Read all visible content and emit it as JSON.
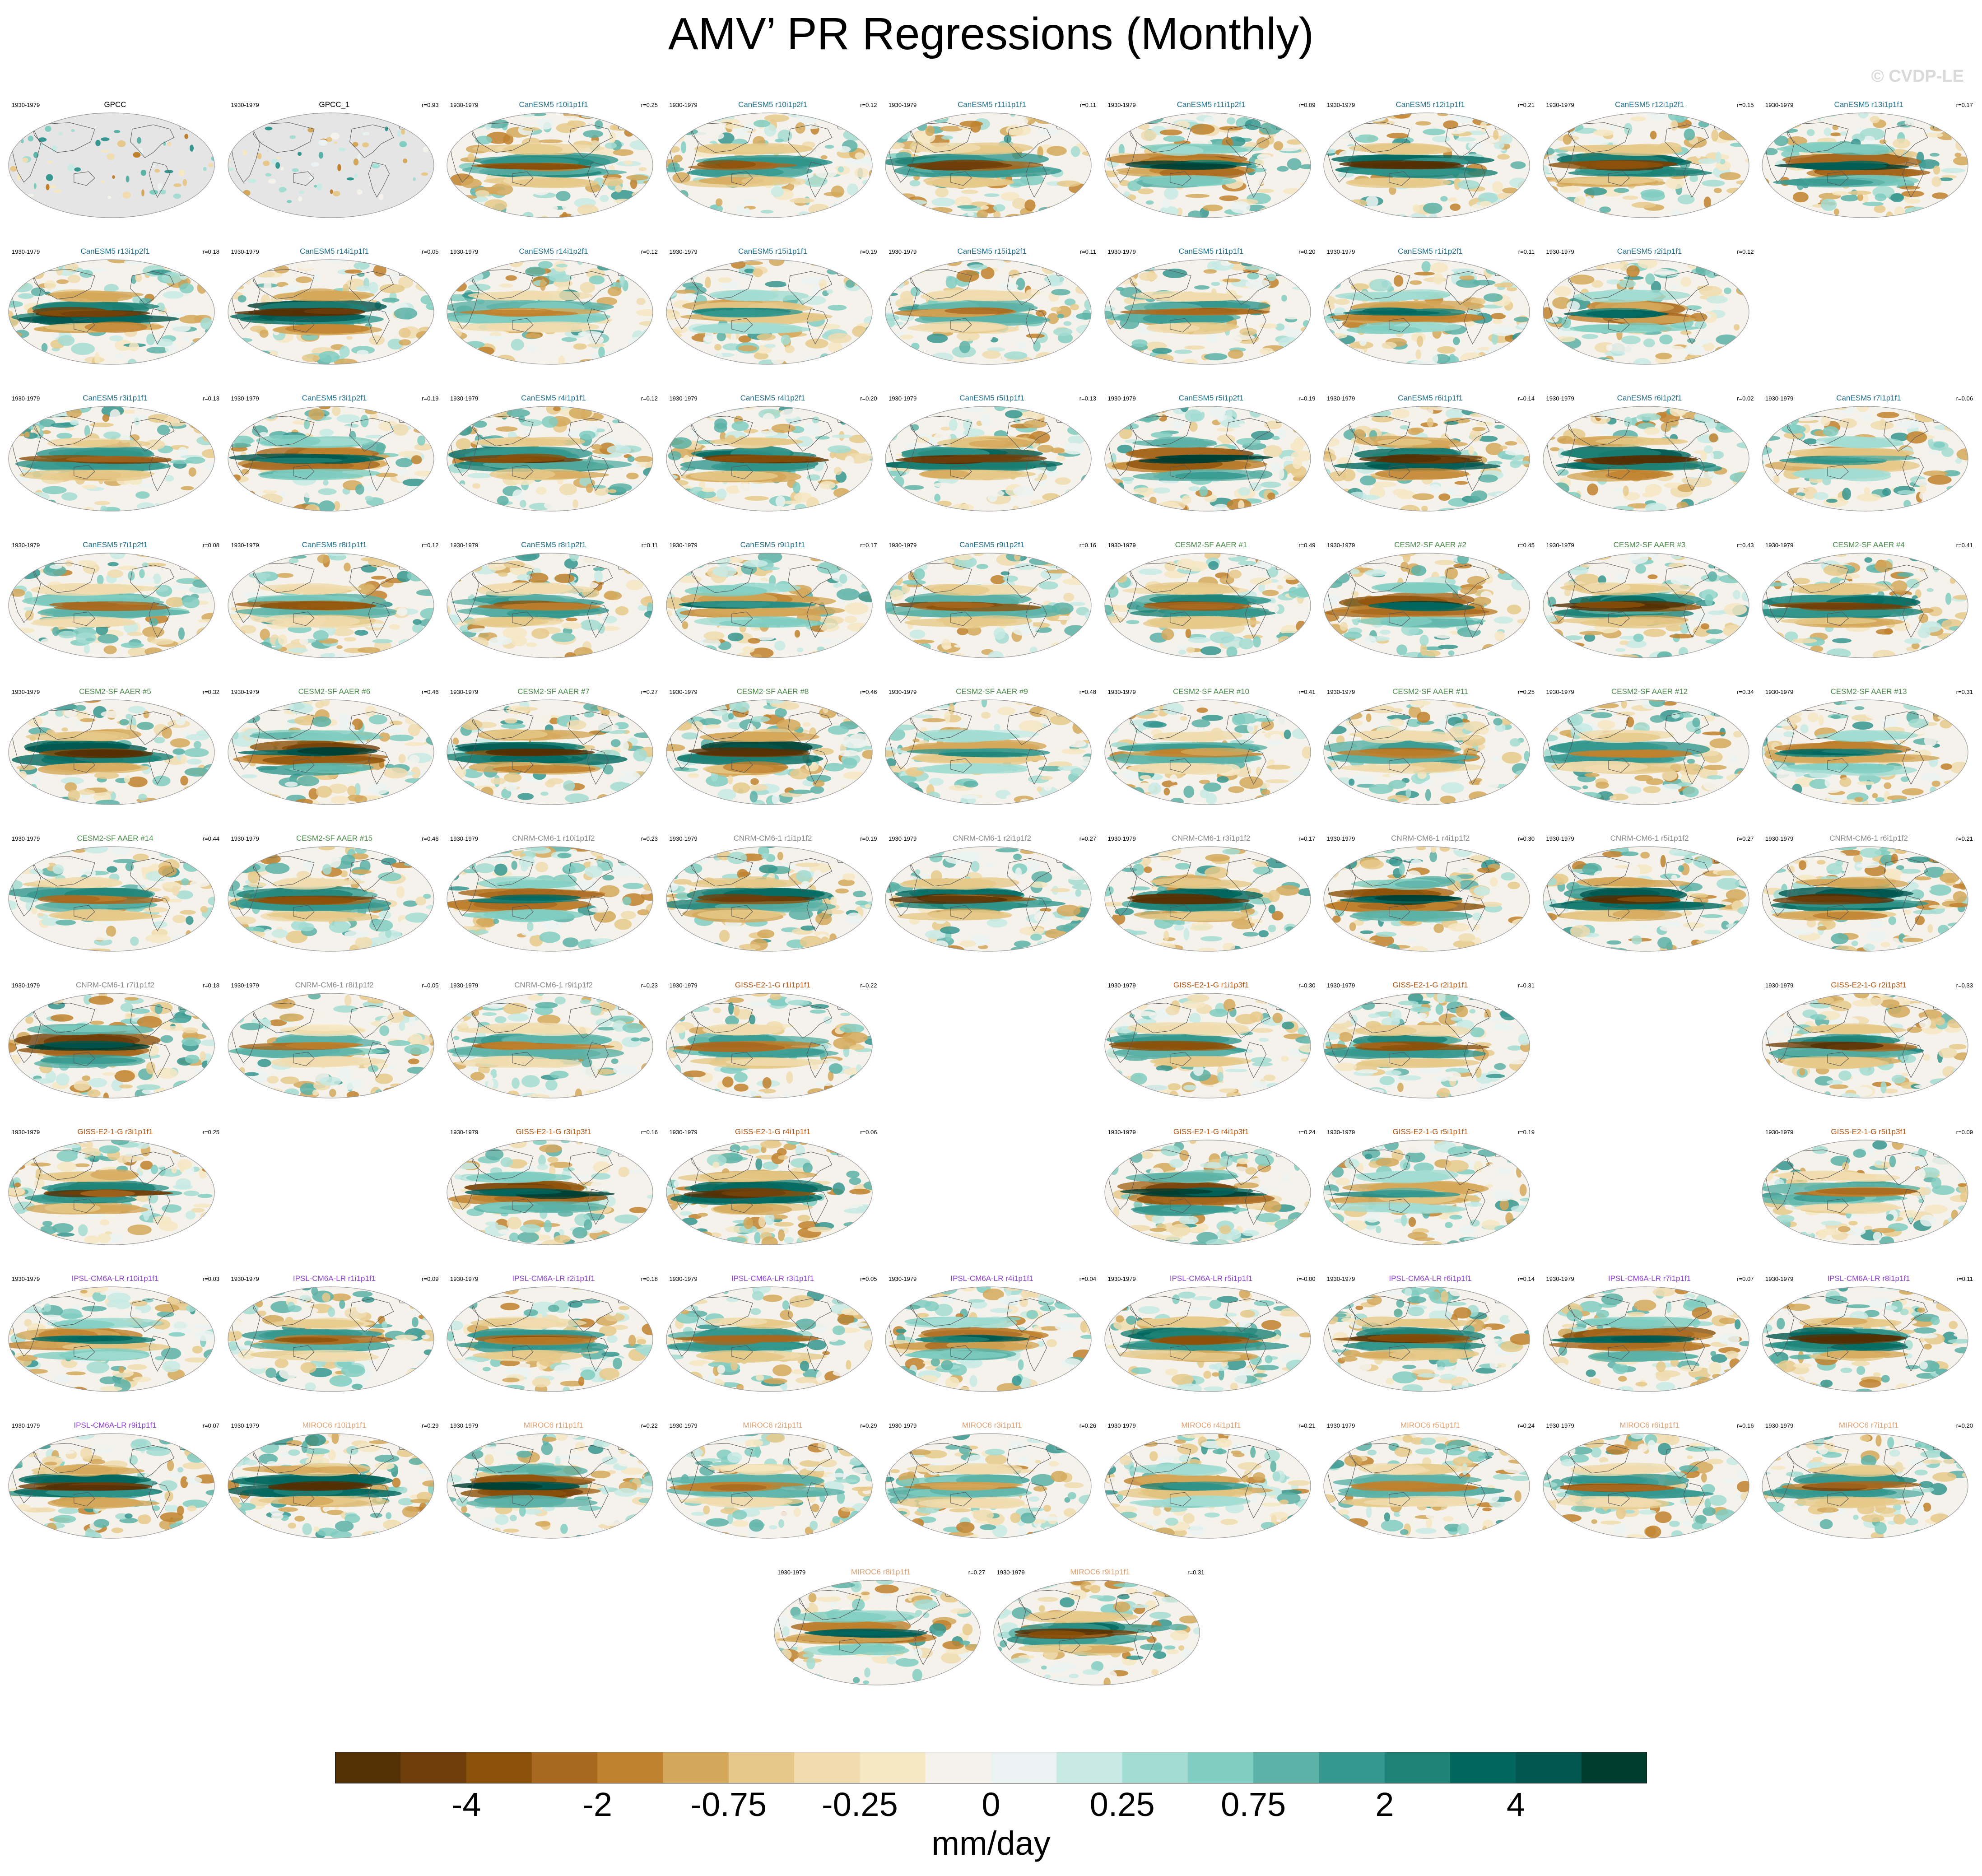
{
  "title": "AMV’ PR Regressions (Monthly)",
  "watermark": "© CVDP-LE",
  "group_colors": {
    "obs": "#000000",
    "CanESM5": "#1f6f8b",
    "CESM2-SF AAER": "#4a8a4a",
    "CNRM-CM6-1": "#888888",
    "GISS-E2-1-G": "#b5540f",
    "IPSL-CM6A-LR": "#8a3fd1",
    "MIROC6": "#e0a070"
  },
  "panels": [
    {
      "period": "1930-1979",
      "title": "GPCC",
      "r": "",
      "group": "obs",
      "obs": true
    },
    {
      "period": "1930-1979",
      "title": "GPCC_1",
      "r": "r=0.93",
      "group": "obs",
      "obs": true
    },
    {
      "period": "1930-1979",
      "title": "CanESM5 r10i1p1f1",
      "r": "r=0.25",
      "group": "CanESM5"
    },
    {
      "period": "1930-1979",
      "title": "CanESM5 r10i1p2f1",
      "r": "r=0.12",
      "group": "CanESM5"
    },
    {
      "period": "1930-1979",
      "title": "CanESM5 r11i1p1f1",
      "r": "r=0.11",
      "group": "CanESM5"
    },
    {
      "period": "1930-1979",
      "title": "CanESM5 r11i1p2f1",
      "r": "r=0.09",
      "group": "CanESM5"
    },
    {
      "period": "1930-1979",
      "title": "CanESM5 r12i1p1f1",
      "r": "r=0.21",
      "group": "CanESM5"
    },
    {
      "period": "1930-1979",
      "title": "CanESM5 r12i1p2f1",
      "r": "r=0.15",
      "group": "CanESM5"
    },
    {
      "period": "1930-1979",
      "title": "CanESM5 r13i1p1f1",
      "r": "r=0.17",
      "group": "CanESM5"
    },
    {
      "period": "1930-1979",
      "title": "CanESM5 r13i1p2f1",
      "r": "r=0.18",
      "group": "CanESM5"
    },
    {
      "period": "1930-1979",
      "title": "CanESM5 r14i1p1f1",
      "r": "r=0.05",
      "group": "CanESM5"
    },
    {
      "period": "1930-1979",
      "title": "CanESM5 r14i1p2f1",
      "r": "r=0.12",
      "group": "CanESM5"
    },
    {
      "period": "1930-1979",
      "title": "CanESM5 r15i1p1f1",
      "r": "r=0.19",
      "group": "CanESM5"
    },
    {
      "period": "1930-1979",
      "title": "CanESM5 r15i1p2f1",
      "r": "r=0.11",
      "group": "CanESM5"
    },
    {
      "period": "1930-1979",
      "title": "CanESM5 r1i1p1f1",
      "r": "r=0.20",
      "group": "CanESM5"
    },
    {
      "period": "1930-1979",
      "title": "CanESM5 r1i1p2f1",
      "r": "r=0.11",
      "group": "CanESM5"
    },
    {
      "period": "1930-1979",
      "title": "CanESM5 r2i1p1f1",
      "r": "r=0.12",
      "group": "CanESM5"
    },
    null,
    {
      "period": "1930-1979",
      "title": "CanESM5 r3i1p1f1",
      "r": "r=0.13",
      "group": "CanESM5"
    },
    {
      "period": "1930-1979",
      "title": "CanESM5 r3i1p2f1",
      "r": "r=0.19",
      "group": "CanESM5"
    },
    {
      "period": "1930-1979",
      "title": "CanESM5 r4i1p1f1",
      "r": "r=0.12",
      "group": "CanESM5"
    },
    {
      "period": "1930-1979",
      "title": "CanESM5 r4i1p2f1",
      "r": "r=0.20",
      "group": "CanESM5"
    },
    {
      "period": "1930-1979",
      "title": "CanESM5 r5i1p1f1",
      "r": "r=0.13",
      "group": "CanESM5"
    },
    {
      "period": "1930-1979",
      "title": "CanESM5 r5i1p2f1",
      "r": "r=0.19",
      "group": "CanESM5"
    },
    {
      "period": "1930-1979",
      "title": "CanESM5 r6i1p1f1",
      "r": "r=0.14",
      "group": "CanESM5"
    },
    {
      "period": "1930-1979",
      "title": "CanESM5 r6i1p2f1",
      "r": "r=0.02",
      "group": "CanESM5"
    },
    {
      "period": "1930-1979",
      "title": "CanESM5 r7i1p1f1",
      "r": "r=0.06",
      "group": "CanESM5"
    },
    {
      "period": "1930-1979",
      "title": "CanESM5 r7i1p2f1",
      "r": "r=0.08",
      "group": "CanESM5"
    },
    {
      "period": "1930-1979",
      "title": "CanESM5 r8i1p1f1",
      "r": "r=0.12",
      "group": "CanESM5"
    },
    {
      "period": "1930-1979",
      "title": "CanESM5 r8i1p2f1",
      "r": "r=0.11",
      "group": "CanESM5"
    },
    {
      "period": "1930-1979",
      "title": "CanESM5 r9i1p1f1",
      "r": "r=0.17",
      "group": "CanESM5"
    },
    {
      "period": "1930-1979",
      "title": "CanESM5 r9i1p2f1",
      "r": "r=0.16",
      "group": "CanESM5"
    },
    {
      "period": "1930-1979",
      "title": "CESM2-SF AAER #1",
      "r": "r=0.49",
      "group": "CESM2-SF AAER"
    },
    {
      "period": "1930-1979",
      "title": "CESM2-SF AAER #2",
      "r": "r=0.45",
      "group": "CESM2-SF AAER"
    },
    {
      "period": "1930-1979",
      "title": "CESM2-SF AAER #3",
      "r": "r=0.43",
      "group": "CESM2-SF AAER"
    },
    {
      "period": "1930-1979",
      "title": "CESM2-SF AAER #4",
      "r": "r=0.41",
      "group": "CESM2-SF AAER"
    },
    {
      "period": "1930-1979",
      "title": "CESM2-SF AAER #5",
      "r": "r=0.32",
      "group": "CESM2-SF AAER"
    },
    {
      "period": "1930-1979",
      "title": "CESM2-SF AAER #6",
      "r": "r=0.46",
      "group": "CESM2-SF AAER"
    },
    {
      "period": "1930-1979",
      "title": "CESM2-SF AAER #7",
      "r": "r=0.27",
      "group": "CESM2-SF AAER"
    },
    {
      "period": "1930-1979",
      "title": "CESM2-SF AAER #8",
      "r": "r=0.46",
      "group": "CESM2-SF AAER"
    },
    {
      "period": "1930-1979",
      "title": "CESM2-SF AAER #9",
      "r": "r=0.48",
      "group": "CESM2-SF AAER"
    },
    {
      "period": "1930-1979",
      "title": "CESM2-SF AAER #10",
      "r": "r=0.41",
      "group": "CESM2-SF AAER"
    },
    {
      "period": "1930-1979",
      "title": "CESM2-SF AAER #11",
      "r": "r=0.25",
      "group": "CESM2-SF AAER"
    },
    {
      "period": "1930-1979",
      "title": "CESM2-SF AAER #12",
      "r": "r=0.34",
      "group": "CESM2-SF AAER"
    },
    {
      "period": "1930-1979",
      "title": "CESM2-SF AAER #13",
      "r": "r=0.31",
      "group": "CESM2-SF AAER"
    },
    {
      "period": "1930-1979",
      "title": "CESM2-SF AAER #14",
      "r": "r=0.44",
      "group": "CESM2-SF AAER"
    },
    {
      "period": "1930-1979",
      "title": "CESM2-SF AAER #15",
      "r": "r=0.46",
      "group": "CESM2-SF AAER"
    },
    {
      "period": "1930-1979",
      "title": "CNRM-CM6-1 r10i1p1f2",
      "r": "r=0.23",
      "group": "CNRM-CM6-1"
    },
    {
      "period": "1930-1979",
      "title": "CNRM-CM6-1 r1i1p1f2",
      "r": "r=0.19",
      "group": "CNRM-CM6-1"
    },
    {
      "period": "1930-1979",
      "title": "CNRM-CM6-1 r2i1p1f2",
      "r": "r=0.27",
      "group": "CNRM-CM6-1"
    },
    {
      "period": "1930-1979",
      "title": "CNRM-CM6-1 r3i1p1f2",
      "r": "r=0.17",
      "group": "CNRM-CM6-1"
    },
    {
      "period": "1930-1979",
      "title": "CNRM-CM6-1 r4i1p1f2",
      "r": "r=0.30",
      "group": "CNRM-CM6-1"
    },
    {
      "period": "1930-1979",
      "title": "CNRM-CM6-1 r5i1p1f2",
      "r": "r=0.27",
      "group": "CNRM-CM6-1"
    },
    {
      "period": "1930-1979",
      "title": "CNRM-CM6-1 r6i1p1f2",
      "r": "r=0.21",
      "group": "CNRM-CM6-1"
    },
    {
      "period": "1930-1979",
      "title": "CNRM-CM6-1 r7i1p1f2",
      "r": "r=0.18",
      "group": "CNRM-CM6-1"
    },
    {
      "period": "1930-1979",
      "title": "CNRM-CM6-1 r8i1p1f2",
      "r": "r=0.05",
      "group": "CNRM-CM6-1"
    },
    {
      "period": "1930-1979",
      "title": "CNRM-CM6-1 r9i1p1f2",
      "r": "r=0.23",
      "group": "CNRM-CM6-1"
    },
    {
      "period": "1930-1979",
      "title": "GISS-E2-1-G r1i1p1f1",
      "r": "r=0.22",
      "group": "GISS-E2-1-G"
    },
    null,
    {
      "period": "1930-1979",
      "title": "GISS-E2-1-G r1i1p3f1",
      "r": "r=0.30",
      "group": "GISS-E2-1-G"
    },
    {
      "period": "1930-1979",
      "title": "GISS-E2-1-G r2i1p1f1",
      "r": "r=0.31",
      "group": "GISS-E2-1-G"
    },
    null,
    {
      "period": "1930-1979",
      "title": "GISS-E2-1-G r2i1p3f1",
      "r": "r=0.33",
      "group": "GISS-E2-1-G"
    },
    {
      "period": "1930-1979",
      "title": "GISS-E2-1-G r3i1p1f1",
      "r": "r=0.25",
      "group": "GISS-E2-1-G"
    },
    null,
    {
      "period": "1930-1979",
      "title": "GISS-E2-1-G r3i1p3f1",
      "r": "r=0.16",
      "group": "GISS-E2-1-G"
    },
    {
      "period": "1930-1979",
      "title": "GISS-E2-1-G r4i1p1f1",
      "r": "r=0.06",
      "group": "GISS-E2-1-G"
    },
    null,
    {
      "period": "1930-1979",
      "title": "GISS-E2-1-G r4i1p3f1",
      "r": "r=0.24",
      "group": "GISS-E2-1-G"
    },
    {
      "period": "1930-1979",
      "title": "GISS-E2-1-G r5i1p1f1",
      "r": "r=0.19",
      "group": "GISS-E2-1-G"
    },
    null,
    {
      "period": "1930-1979",
      "title": "GISS-E2-1-G r5i1p3f1",
      "r": "r=0.09",
      "group": "GISS-E2-1-G"
    },
    {
      "period": "1930-1979",
      "title": "IPSL-CM6A-LR r10i1p1f1",
      "r": "r=0.03",
      "group": "IPSL-CM6A-LR"
    },
    {
      "period": "1930-1979",
      "title": "IPSL-CM6A-LR r1i1p1f1",
      "r": "r=0.09",
      "group": "IPSL-CM6A-LR"
    },
    {
      "period": "1930-1979",
      "title": "IPSL-CM6A-LR r2i1p1f1",
      "r": "r=0.18",
      "group": "IPSL-CM6A-LR"
    },
    {
      "period": "1930-1979",
      "title": "IPSL-CM6A-LR r3i1p1f1",
      "r": "r=0.05",
      "group": "IPSL-CM6A-LR"
    },
    {
      "period": "1930-1979",
      "title": "IPSL-CM6A-LR r4i1p1f1",
      "r": "r=0.04",
      "group": "IPSL-CM6A-LR"
    },
    {
      "period": "1930-1979",
      "title": "IPSL-CM6A-LR r5i1p1f1",
      "r": "r=-0.00",
      "group": "IPSL-CM6A-LR"
    },
    {
      "period": "1930-1979",
      "title": "IPSL-CM6A-LR r6i1p1f1",
      "r": "r=0.14",
      "group": "IPSL-CM6A-LR"
    },
    {
      "period": "1930-1979",
      "title": "IPSL-CM6A-LR r7i1p1f1",
      "r": "r=0.07",
      "group": "IPSL-CM6A-LR"
    },
    {
      "period": "1930-1979",
      "title": "IPSL-CM6A-LR r8i1p1f1",
      "r": "r=0.11",
      "group": "IPSL-CM6A-LR"
    },
    {
      "period": "1930-1979",
      "title": "IPSL-CM6A-LR r9i1p1f1",
      "r": "r=0.07",
      "group": "IPSL-CM6A-LR"
    },
    {
      "period": "1930-1979",
      "title": "MIROC6 r10i1p1f1",
      "r": "r=0.29",
      "group": "MIROC6"
    },
    {
      "period": "1930-1979",
      "title": "MIROC6 r1i1p1f1",
      "r": "r=0.22",
      "group": "MIROC6"
    },
    {
      "period": "1930-1979",
      "title": "MIROC6 r2i1p1f1",
      "r": "r=0.29",
      "group": "MIROC6"
    },
    {
      "period": "1930-1979",
      "title": "MIROC6 r3i1p1f1",
      "r": "r=0.26",
      "group": "MIROC6"
    },
    {
      "period": "1930-1979",
      "title": "MIROC6 r4i1p1f1",
      "r": "r=0.21",
      "group": "MIROC6"
    },
    {
      "period": "1930-1979",
      "title": "MIROC6 r5i1p1f1",
      "r": "r=0.24",
      "group": "MIROC6"
    },
    {
      "period": "1930-1979",
      "title": "MIROC6 r6i1p1f1",
      "r": "r=0.16",
      "group": "MIROC6"
    },
    {
      "period": "1930-1979",
      "title": "MIROC6 r7i1p1f1",
      "r": "r=0.20",
      "group": "MIROC6"
    },
    {
      "period": "1930-1979",
      "title": "MIROC6 r8i1p1f1",
      "r": "r=0.27",
      "group": "MIROC6"
    },
    {
      "period": "1930-1979",
      "title": "MIROC6 r9i1p1f1",
      "r": "r=0.31",
      "group": "MIROC6"
    }
  ],
  "colorbar": {
    "colors": [
      "#543005",
      "#6f3e0a",
      "#8c510a",
      "#a8681f",
      "#bf812d",
      "#d4a85a",
      "#e6c98a",
      "#f0dcaf",
      "#f6e8c3",
      "#f5f2ec",
      "#eaf3f1",
      "#c7eae5",
      "#a3dcd2",
      "#80cdc1",
      "#5cb2a6",
      "#35978f",
      "#1e8277",
      "#01665e",
      "#01564f",
      "#003c30"
    ],
    "labels": [
      "-4",
      "-2",
      "-0.75",
      "-0.25",
      "0",
      "0.25",
      "0.75",
      "2",
      "4"
    ],
    "units": "mm/day"
  }
}
